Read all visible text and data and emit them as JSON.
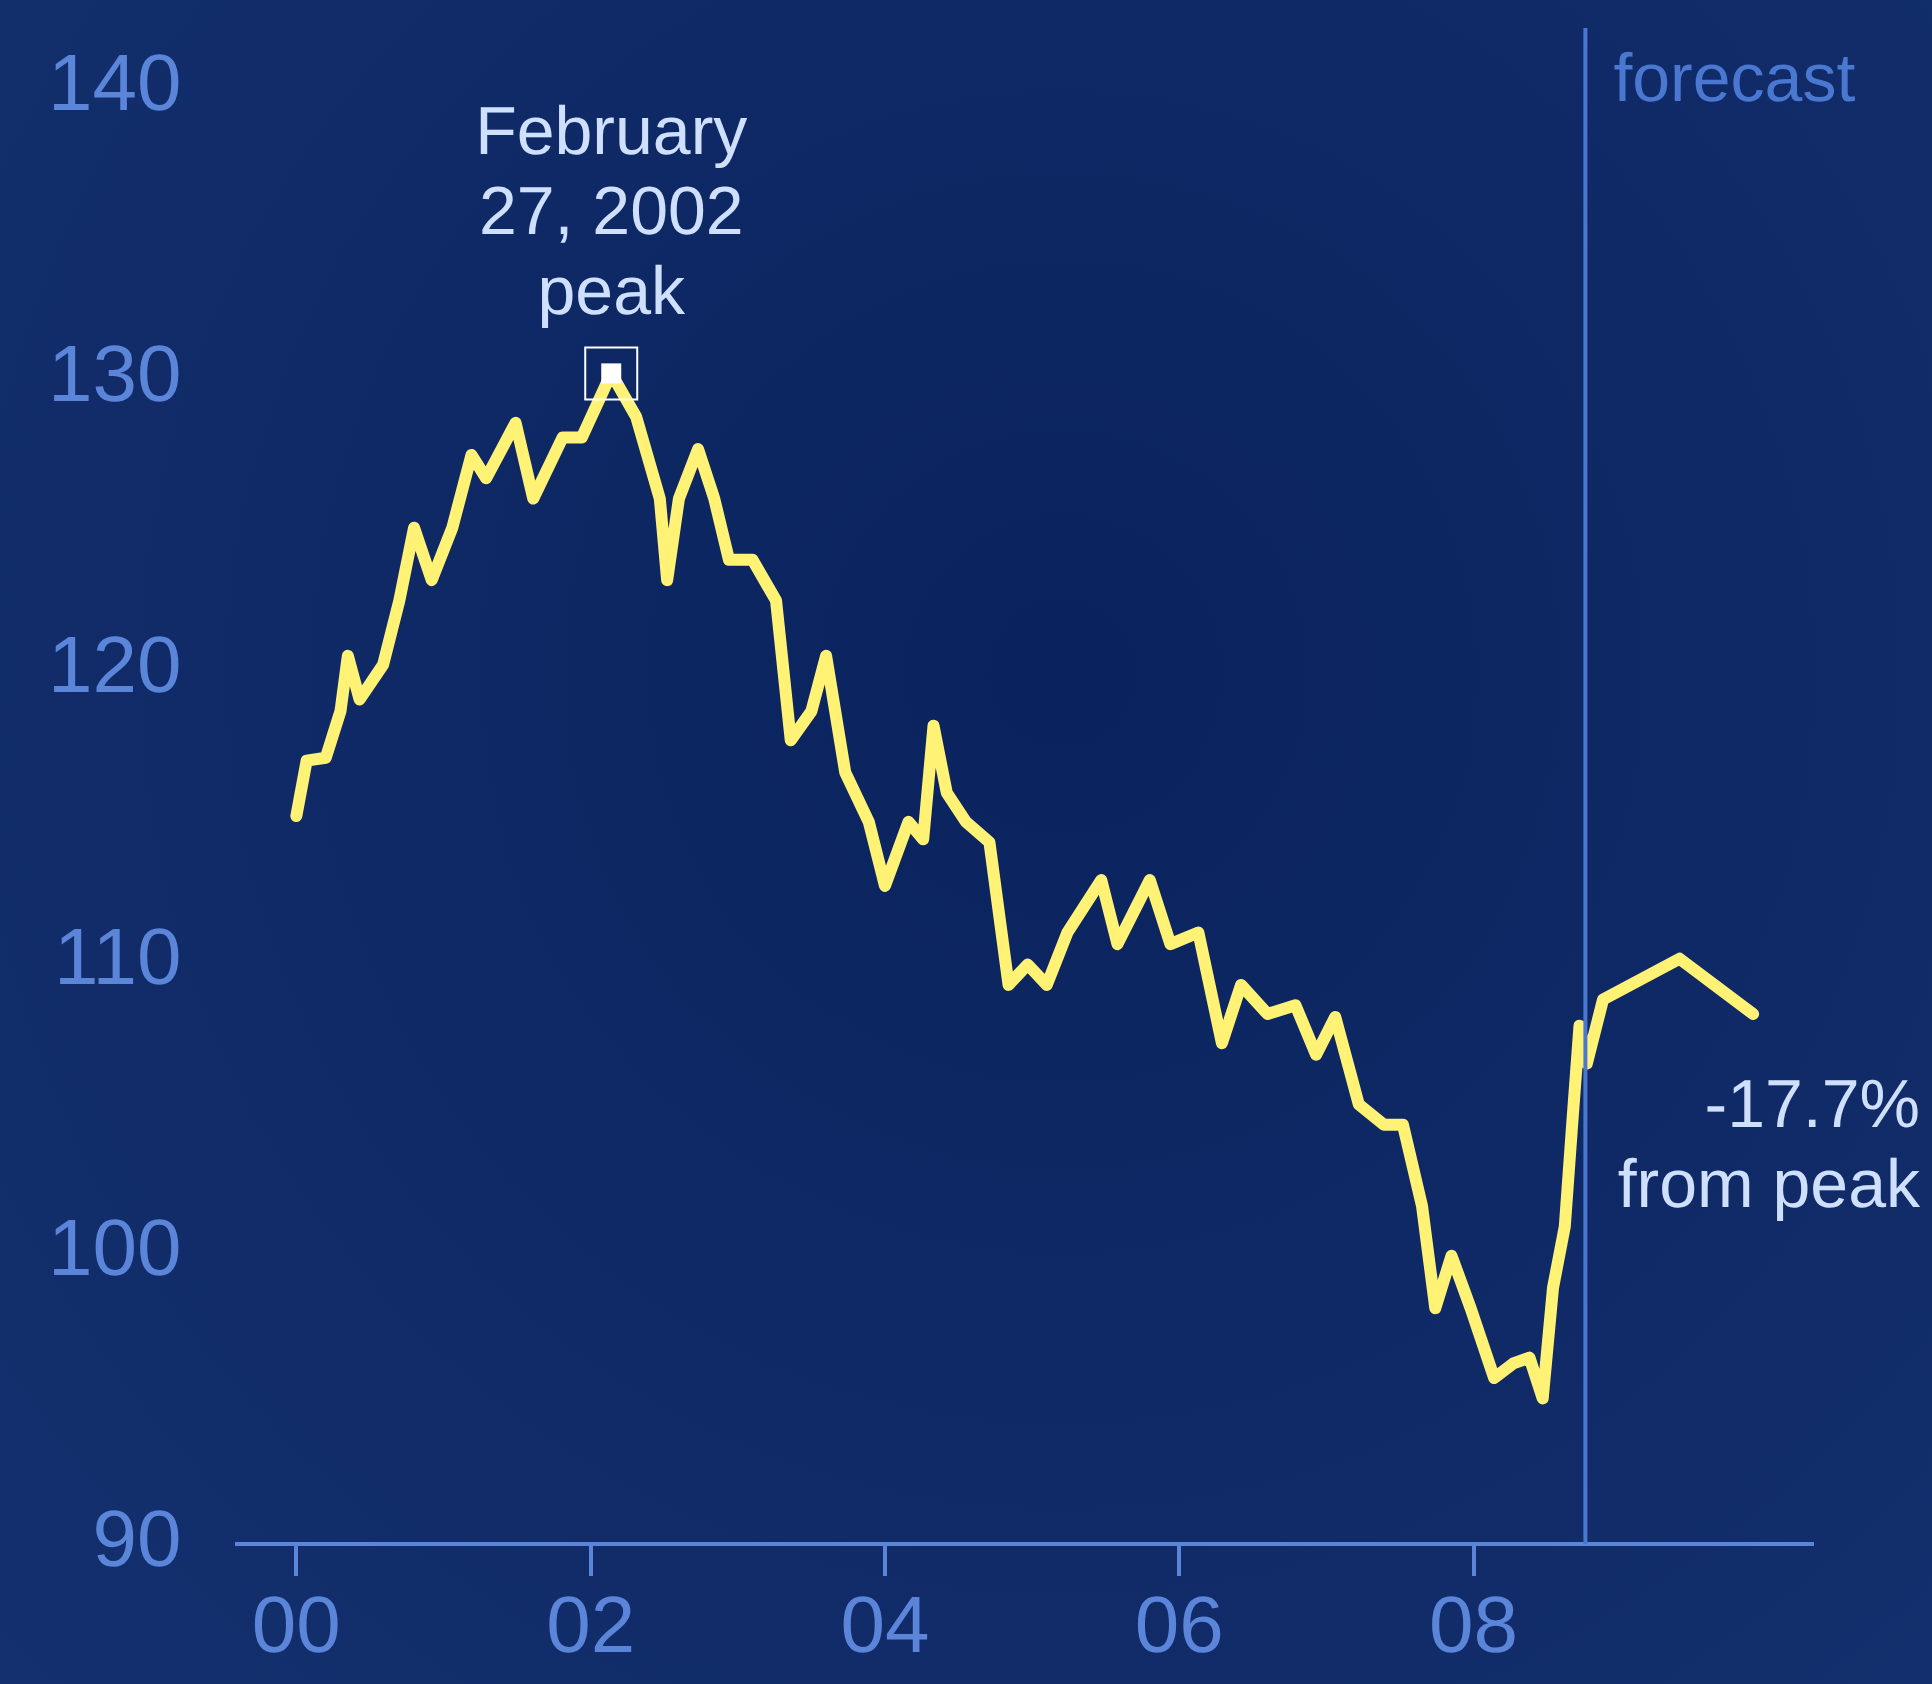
{
  "chart_data": {
    "type": "line",
    "x": [
      2000.0,
      2000.07,
      2000.2,
      2000.3,
      2000.35,
      2000.43,
      2000.59,
      2000.7,
      2000.8,
      2000.92,
      2001.06,
      2001.19,
      2001.29,
      2001.49,
      2001.61,
      2001.81,
      2001.94,
      2002.14,
      2002.31,
      2002.47,
      2002.52,
      2002.6,
      2002.73,
      2002.84,
      2002.94,
      2003.1,
      2003.26,
      2003.36,
      2003.5,
      2003.6,
      2003.73,
      2003.89,
      2004.0,
      2004.16,
      2004.26,
      2004.33,
      2004.42,
      2004.55,
      2004.71,
      2004.84,
      2004.97,
      2005.1,
      2005.24,
      2005.47,
      2005.58,
      2005.8,
      2005.94,
      2006.13,
      2006.29,
      2006.42,
      2006.6,
      2006.79,
      2006.93,
      2007.06,
      2007.22,
      2007.39,
      2007.52,
      2007.65,
      2007.74,
      2007.85,
      2007.98,
      2008.14,
      2008.27,
      2008.38,
      2008.47,
      2008.54,
      2008.62,
      2008.67,
      2008.72,
      2008.77,
      2008.88,
      2009.4,
      2009.9
    ],
    "series": [
      {
        "color": "#fff275",
        "values": [
          115.0,
          116.9,
          117.0,
          118.6,
          120.5,
          119.0,
          120.2,
          122.4,
          124.9,
          123.1,
          124.9,
          127.4,
          126.6,
          128.5,
          125.9,
          128.0,
          128.0,
          130.2,
          128.7,
          125.9,
          123.1,
          125.9,
          127.6,
          125.9,
          123.8,
          123.8,
          122.4,
          117.6,
          118.6,
          120.5,
          116.5,
          114.8,
          112.6,
          114.8,
          114.2,
          118.1,
          115.8,
          114.8,
          114.1,
          109.2,
          109.9,
          109.2,
          111.0,
          112.8,
          110.6,
          112.8,
          110.6,
          111.0,
          107.2,
          109.2,
          108.2,
          108.5,
          106.8,
          108.1,
          105.1,
          104.4,
          104.4,
          101.6,
          98.1,
          99.9,
          98.1,
          95.7,
          96.2,
          96.4,
          95.0,
          98.8,
          100.9,
          104.4,
          107.8,
          106.5,
          108.7,
          110.1,
          108.2
        ]
      }
    ],
    "xlim": [
      1999.6,
      2010.3
    ],
    "xticks": [
      {
        "value": 2000,
        "label": "00"
      },
      {
        "value": 2002,
        "label": "02"
      },
      {
        "value": 2004,
        "label": "04"
      },
      {
        "value": 2006,
        "label": "06"
      },
      {
        "value": 2008,
        "label": "08"
      }
    ],
    "ylim": [
      90,
      140
    ],
    "yticks": [
      90,
      100,
      110,
      120,
      130,
      140
    ],
    "ref_lines": [
      {
        "axis": "x",
        "value": 2008.76,
        "label": "forecast",
        "color": "#4a78d0"
      }
    ],
    "annotations": [
      {
        "text": "February 27, 2002 peak",
        "x": 2002.14,
        "y": 130.2
      },
      {
        "text": "-17.7% from peak",
        "x": 2009.9,
        "y": 108.2
      }
    ]
  }
}
